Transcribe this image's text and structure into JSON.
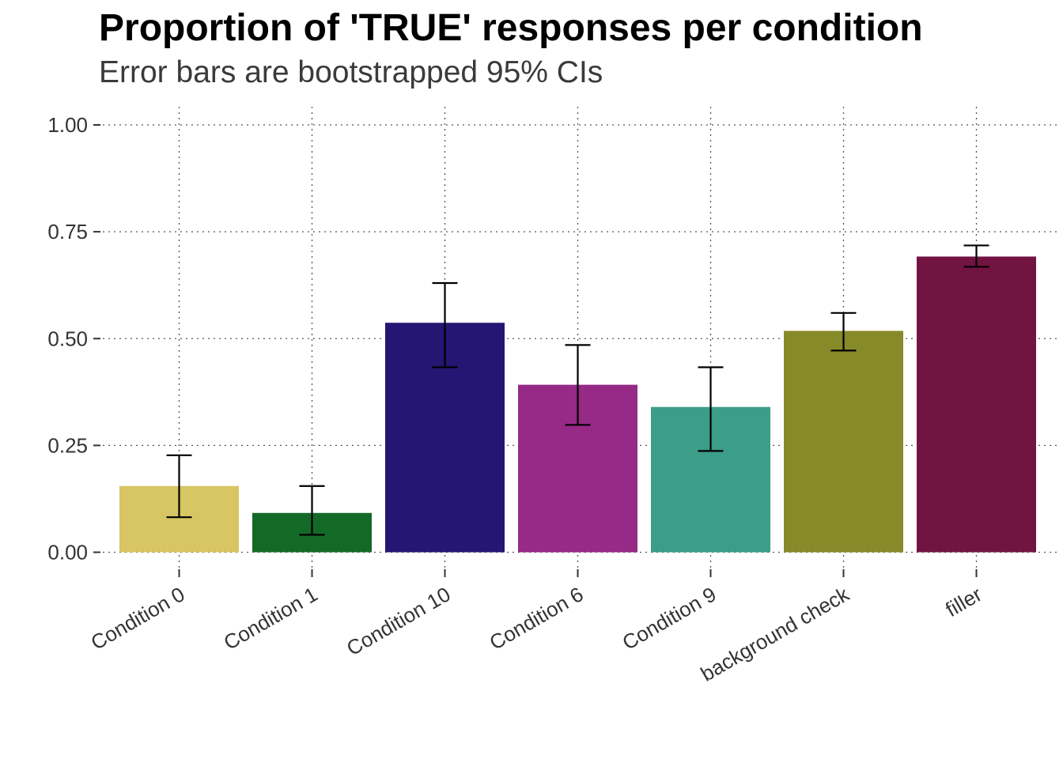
{
  "chart_data": {
    "type": "bar",
    "title": "Proportion of 'TRUE' responses per condition",
    "subtitle": "Error bars are bootstrapped 95% CIs",
    "xlabel": "",
    "ylabel": "",
    "ylim": [
      0,
      1
    ],
    "yticks": [
      "0.00",
      "0.25",
      "0.50",
      "0.75",
      "1.00"
    ],
    "ytick_values": [
      0,
      0.25,
      0.5,
      0.75,
      1.0
    ],
    "categories": [
      "Condition 0",
      "Condition 1",
      "Condition 10",
      "Condition 6",
      "Condition 9",
      "background check",
      "filler"
    ],
    "values": [
      0.155,
      0.092,
      0.537,
      0.392,
      0.34,
      0.518,
      0.692
    ],
    "error_low": [
      0.082,
      0.041,
      0.433,
      0.298,
      0.237,
      0.472,
      0.668
    ],
    "error_high": [
      0.227,
      0.155,
      0.63,
      0.485,
      0.433,
      0.56,
      0.718
    ],
    "colors": [
      "#D8C563",
      "#136A27",
      "#241672",
      "#962A86",
      "#3C9D88",
      "#878A29",
      "#721442"
    ],
    "grid": true,
    "legend": "none"
  }
}
